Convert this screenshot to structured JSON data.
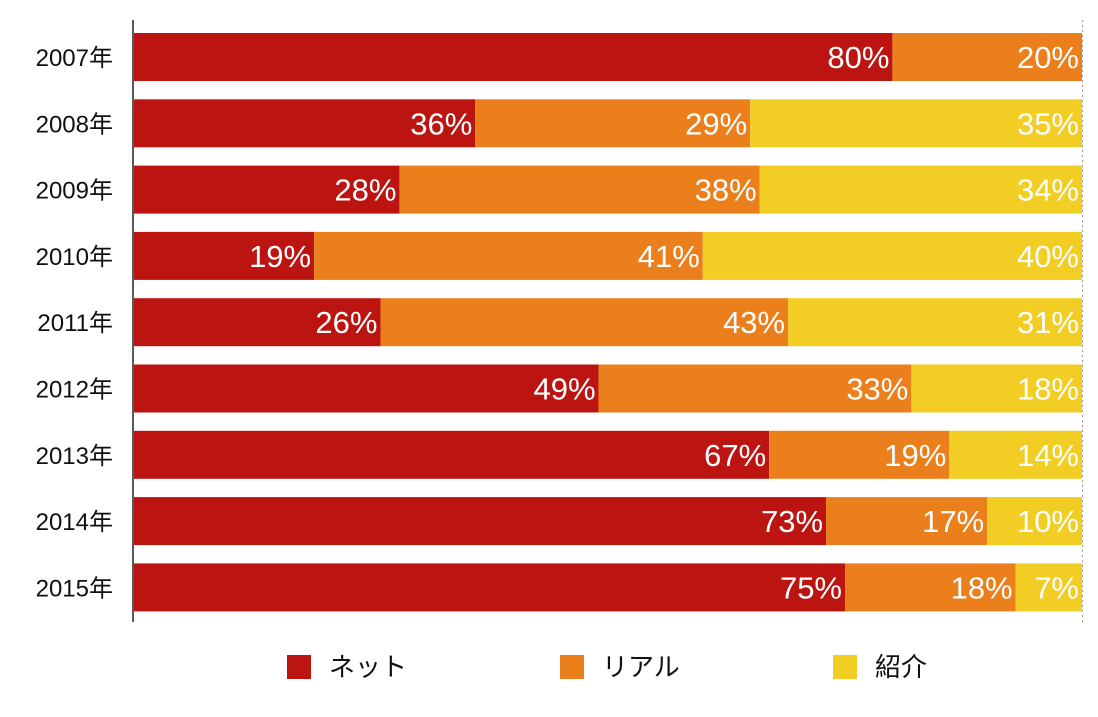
{
  "chart_data": {
    "type": "bar",
    "orientation": "horizontal",
    "stacked": "percent",
    "categories": [
      "2007年",
      "2008年",
      "2009年",
      "2010年",
      "2011年",
      "2012年",
      "2013年",
      "2014年",
      "2015年"
    ],
    "series": [
      {
        "name": "ネット",
        "color": "#BB1411",
        "values": [
          80,
          36,
          28,
          19,
          26,
          49,
          67,
          73,
          75
        ]
      },
      {
        "name": "リアル",
        "color": "#EA7F1B",
        "values": [
          20,
          29,
          38,
          41,
          43,
          33,
          19,
          17,
          18
        ]
      },
      {
        "name": "紹介",
        "color": "#F2CD23",
        "values": [
          0,
          35,
          34,
          40,
          31,
          18,
          14,
          10,
          7
        ]
      }
    ],
    "value_suffix": "%",
    "xlim": [
      0,
      100
    ],
    "grid": false,
    "legend_position": "bottom",
    "title": "",
    "xlabel": "",
    "ylabel": ""
  }
}
